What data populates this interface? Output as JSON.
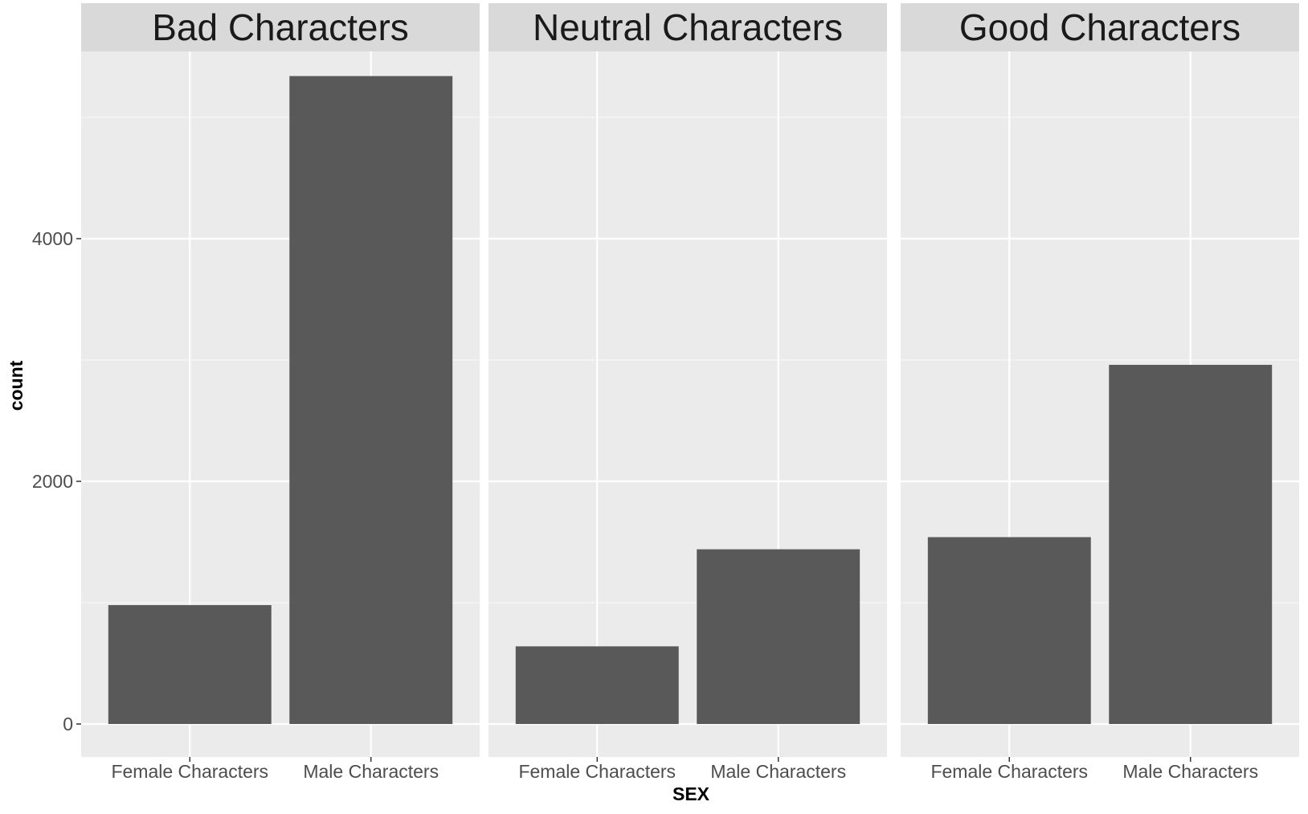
{
  "chart_data": {
    "type": "bar",
    "xlabel": "SEX",
    "ylabel": "count",
    "ylim": [
      0,
      5600
    ],
    "yticks": [
      0,
      2000,
      4000
    ],
    "categories": [
      "Female Characters",
      "Male Characters"
    ],
    "grid": true,
    "legend": "none",
    "facets": [
      {
        "title": "Bad Characters",
        "values": [
          980,
          5340
        ]
      },
      {
        "title": "Neutral Characters",
        "values": [
          640,
          1440
        ]
      },
      {
        "title": "Good Characters",
        "values": [
          1540,
          2960
        ]
      }
    ],
    "colors": {
      "panel_bg": "#ebebeb",
      "strip_bg": "#d9d9d9",
      "bar": "#595959",
      "grid_major": "#ffffff",
      "grid_minor": "#f5f5f5"
    }
  }
}
